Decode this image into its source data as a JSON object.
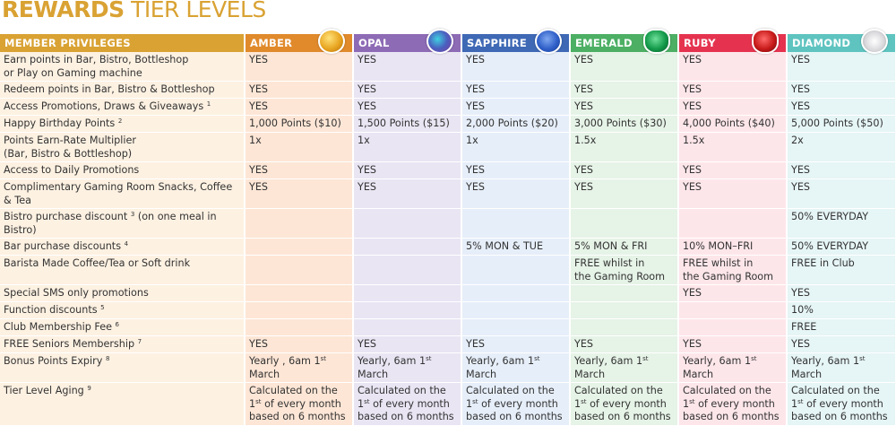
{
  "title": {
    "bold": "REWARDS",
    "rest": " TIER LEVELS"
  },
  "colors": {
    "title": "#d9a233",
    "privileges": "#d9a233"
  },
  "header": {
    "privileges": "MEMBER PRIVILEGES"
  },
  "tiers": [
    {
      "name": "AMBER",
      "color": "#e08a2c",
      "cell": "#fde6d6",
      "gem": "amber-gem-icon",
      "gem_color": "#e8a521"
    },
    {
      "name": "OPAL",
      "color": "#8e6bb5",
      "cell": "#e9e5f3",
      "gem": "opal-gem-icon",
      "gem_color": "#4a5fbf"
    },
    {
      "name": "SAPPHIRE",
      "color": "#3f69b5",
      "cell": "#e6eef9",
      "gem": "sapphire-gem-icon",
      "gem_color": "#2f5fc8"
    },
    {
      "name": "EMERALD",
      "color": "#4caf64",
      "cell": "#e6f3e7",
      "gem": "emerald-gem-icon",
      "gem_color": "#139a4a"
    },
    {
      "name": "RUBY",
      "color": "#e5334f",
      "cell": "#fde6ea",
      "gem": "ruby-gem-icon",
      "gem_color": "#c81a1a"
    },
    {
      "name": "DIAMOND",
      "color": "#5fc4c0",
      "cell": "#e6f5f6",
      "gem": "diamond-gem-icon",
      "gem_color": "#e8e8ea"
    }
  ],
  "label_cell_color": "#fdf1e2",
  "rows": [
    {
      "label": {
        "pre": "Earn points in Bar, Bistro, Bottleshop\nor Play on Gaming machine"
      },
      "values": [
        {
          "pre": "YES"
        },
        {
          "pre": "YES"
        },
        {
          "pre": "YES"
        },
        {
          "pre": "YES"
        },
        {
          "pre": "YES"
        },
        {
          "pre": "YES"
        }
      ]
    },
    {
      "label": {
        "pre": "Redeem points in Bar, Bistro & Bottleshop"
      },
      "values": [
        {
          "pre": "YES"
        },
        {
          "pre": "YES"
        },
        {
          "pre": "YES"
        },
        {
          "pre": "YES"
        },
        {
          "pre": "YES"
        },
        {
          "pre": "YES"
        }
      ]
    },
    {
      "label": {
        "pre": "Access Promotions, Draws & Giveaways ",
        "sup": "1"
      },
      "values": [
        {
          "pre": "YES"
        },
        {
          "pre": "YES"
        },
        {
          "pre": "YES"
        },
        {
          "pre": "YES"
        },
        {
          "pre": "YES"
        },
        {
          "pre": "YES"
        }
      ]
    },
    {
      "label": {
        "pre": "Happy Birthday Points ",
        "sup": "2"
      },
      "values": [
        {
          "pre": "1,000 Points ($10)"
        },
        {
          "pre": "1,500 Points ($15)"
        },
        {
          "pre": "2,000 Points ($20)"
        },
        {
          "pre": "3,000 Points ($30)"
        },
        {
          "pre": "4,000 Points ($40)"
        },
        {
          "pre": "5,000 Points ($50)"
        }
      ]
    },
    {
      "label": {
        "pre": "Points Earn-Rate Multiplier\n(Bar, Bistro & Bottleshop)"
      },
      "values": [
        {
          "pre": "1x"
        },
        {
          "pre": "1x"
        },
        {
          "pre": "1x"
        },
        {
          "pre": "1.5x"
        },
        {
          "pre": "1.5x"
        },
        {
          "pre": "2x"
        }
      ]
    },
    {
      "label": {
        "pre": "Access to Daily Promotions"
      },
      "values": [
        {
          "pre": "YES"
        },
        {
          "pre": "YES"
        },
        {
          "pre": "YES"
        },
        {
          "pre": "YES"
        },
        {
          "pre": "YES"
        },
        {
          "pre": "YES"
        }
      ]
    },
    {
      "label": {
        "pre": "Complimentary Gaming Room Snacks, Coffee & Tea"
      },
      "values": [
        {
          "pre": "YES"
        },
        {
          "pre": "YES"
        },
        {
          "pre": "YES"
        },
        {
          "pre": "YES"
        },
        {
          "pre": "YES"
        },
        {
          "pre": "YES"
        }
      ]
    },
    {
      "label": {
        "pre": "Bistro purchase discount ",
        "sup": "3",
        "post": " (on one meal in Bistro)"
      },
      "values": [
        {},
        {},
        {},
        {},
        {},
        {
          "pre": "50% EVERYDAY"
        }
      ]
    },
    {
      "label": {
        "pre": "Bar purchase discounts ",
        "sup": "4"
      },
      "values": [
        {},
        {},
        {
          "pre": "5% MON & TUE"
        },
        {
          "pre": "5% MON & FRI"
        },
        {
          "pre": "10% MON–FRI"
        },
        {
          "pre": "50% EVERYDAY"
        }
      ]
    },
    {
      "label": {
        "pre": "Barista Made Coffee/Tea or Soft drink"
      },
      "values": [
        {},
        {},
        {},
        {
          "pre": "FREE whilst in\nthe Gaming Room"
        },
        {
          "pre": "FREE whilst in\nthe Gaming Room"
        },
        {
          "pre": "FREE in Club"
        }
      ]
    },
    {
      "label": {
        "pre": "Special SMS only promotions"
      },
      "values": [
        {},
        {},
        {},
        {},
        {
          "pre": "YES"
        },
        {
          "pre": "YES"
        }
      ]
    },
    {
      "label": {
        "pre": "Function discounts ",
        "sup": "5"
      },
      "values": [
        {},
        {},
        {},
        {},
        {},
        {
          "pre": "10%"
        }
      ]
    },
    {
      "label": {
        "pre": "Club Membership Fee ",
        "sup": "6"
      },
      "values": [
        {},
        {},
        {},
        {},
        {},
        {
          "pre": "FREE"
        }
      ]
    },
    {
      "label": {
        "pre": "FREE Seniors Membership ",
        "sup": "7"
      },
      "values": [
        {
          "pre": "YES"
        },
        {
          "pre": "YES"
        },
        {
          "pre": "YES"
        },
        {
          "pre": "YES"
        },
        {
          "pre": "YES"
        },
        {
          "pre": "YES"
        }
      ]
    },
    {
      "label": {
        "pre": "Bonus Points Expiry ",
        "sup": "8"
      },
      "values": [
        {
          "pre": "Yearly , 6am 1",
          "sup": "st",
          "post": " March"
        },
        {
          "pre": "Yearly, 6am 1",
          "sup": "st",
          "post": " March"
        },
        {
          "pre": "Yearly, 6am 1",
          "sup": "st",
          "post": " March"
        },
        {
          "pre": "Yearly, 6am 1",
          "sup": "st",
          "post": " March"
        },
        {
          "pre": "Yearly, 6am 1",
          "sup": "st",
          "post": " March"
        },
        {
          "pre": "Yearly, 6am 1",
          "sup": "st",
          "post": " March"
        }
      ]
    },
    {
      "label": {
        "pre": "Tier Level Aging ",
        "sup": "9"
      },
      "values": [
        {
          "pre": "Calculated on the\n1",
          "sup": "st",
          "post": " of every month\nbased on 6 months"
        },
        {
          "pre": "Calculated on the\n1",
          "sup": "st",
          "post": " of every month\nbased on 6 months"
        },
        {
          "pre": "Calculated on the\n1",
          "sup": "st",
          "post": " of every month\nbased on 6 months"
        },
        {
          "pre": "Calculated on the\n1",
          "sup": "st",
          "post": " of every month\nbased on 6 months"
        },
        {
          "pre": "Calculated on the\n1",
          "sup": "st",
          "post": " of every month\nbased on 6 months"
        },
        {
          "pre": "Calculated on the\n1",
          "sup": "st",
          "post": " of every month\nbased on 6 months"
        }
      ]
    }
  ]
}
